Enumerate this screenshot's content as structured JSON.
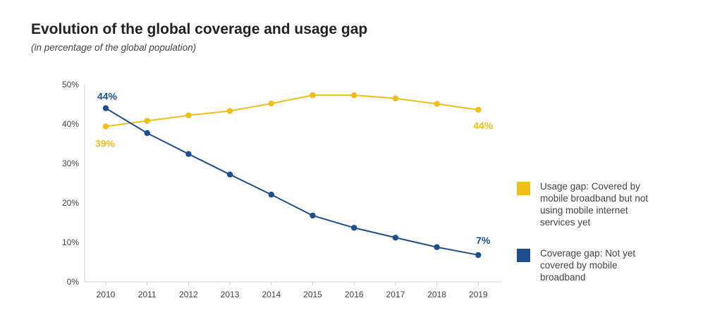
{
  "colors": {
    "usage": "#F2BE1A",
    "coverage": "#1F4E8C"
  },
  "chart_data": {
    "type": "line",
    "title": "Evolution of the global coverage and usage gap",
    "subtitle": "(in percentage of the global population)",
    "xlabel": "",
    "ylabel": "",
    "ylim": [
      0,
      50
    ],
    "yticks": [
      "0%",
      "10%",
      "20%",
      "30%",
      "40%",
      "50%"
    ],
    "x": [
      "2010",
      "2011",
      "2012",
      "2013",
      "2014",
      "2015",
      "2016",
      "2017",
      "2018",
      "2019"
    ],
    "series": [
      {
        "name": "Usage gap: Covered by mobile broadband but not using mobile internet services yet",
        "key": "usage",
        "values": [
          39.4,
          40.8,
          42.2,
          43.3,
          45.2,
          47.3,
          47.3,
          46.5,
          45.1,
          43.6
        ]
      },
      {
        "name": "Coverage gap: Not yet covered by mobile broadband",
        "key": "coverage",
        "values": [
          44,
          37.7,
          32.4,
          27.2,
          22.1,
          16.8,
          13.7,
          11.2,
          8.8,
          6.8
        ]
      }
    ],
    "annotations": [
      {
        "text": "44%",
        "series": "coverage",
        "index": 0
      },
      {
        "text": "39%",
        "series": "usage",
        "index": 0
      },
      {
        "text": "44%",
        "series": "usage",
        "index": 9
      },
      {
        "text": "7%",
        "series": "coverage",
        "index": 9
      }
    ],
    "grid": false,
    "legend": "right"
  }
}
